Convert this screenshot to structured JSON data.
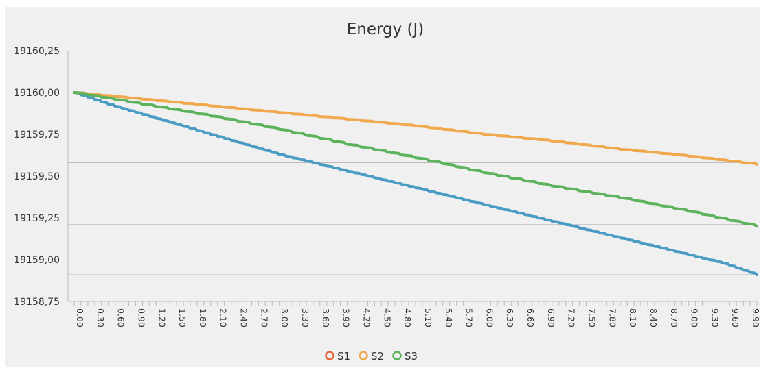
{
  "chart_data": {
    "type": "line",
    "title": "Energy (J)",
    "xlabel": "",
    "ylabel": "",
    "xlim": [
      0,
      10
    ],
    "ylim": [
      19158.75,
      19160.25
    ],
    "y_ticks": [
      "19160,25",
      "19160,00",
      "19159,75",
      "19159,50",
      "19159,25",
      "19159,00",
      "19158,75"
    ],
    "x_ticks": [
      "0.00",
      "0.30",
      "0.60",
      "0.90",
      "1.20",
      "1.50",
      "1.80",
      "2.10",
      "2.40",
      "2.70",
      "3.00",
      "3.30",
      "3.60",
      "3.90",
      "4.20",
      "4.50",
      "4.80",
      "5.10",
      "5.40",
      "5.70",
      "6.00",
      "6.30",
      "6.60",
      "6.90",
      "7.20",
      "7.50",
      "7.80",
      "8.10",
      "8.40",
      "8.70",
      "9.00",
      "9.30",
      "9.60",
      "9.90"
    ],
    "legend_position": "bottom",
    "series": [
      {
        "name": "S1",
        "color": "#4a9cc4",
        "x": [
          0.0,
          0.5,
          1.0,
          1.5,
          2.0,
          2.5,
          3.0,
          3.5,
          4.0,
          4.5,
          5.0,
          5.5,
          6.0,
          6.5,
          7.0,
          7.5,
          8.0,
          8.5,
          9.0,
          9.5,
          10.0
        ],
        "values": [
          19160.0,
          19159.93,
          19159.87,
          19159.81,
          19159.75,
          19159.69,
          19159.63,
          19159.58,
          19159.53,
          19159.48,
          19159.43,
          19159.38,
          19159.33,
          19159.28,
          19159.23,
          19159.18,
          19159.13,
          19159.08,
          19159.03,
          19158.98,
          19158.91
        ]
      },
      {
        "name": "S2",
        "color": "#f0a84c",
        "x": [
          0.0,
          1.0,
          2.0,
          3.0,
          4.0,
          5.0,
          6.0,
          7.0,
          8.0,
          9.0,
          10.0
        ],
        "values": [
          19160.0,
          19159.96,
          19159.92,
          19159.88,
          19159.84,
          19159.8,
          19159.75,
          19159.71,
          19159.66,
          19159.62,
          19159.57
        ]
      },
      {
        "name": "S3",
        "color": "#5cb35c",
        "x": [
          0.0,
          1.0,
          2.0,
          3.0,
          4.0,
          5.0,
          6.0,
          7.0,
          8.0,
          9.0,
          10.0
        ],
        "values": [
          19160.0,
          19159.93,
          19159.86,
          19159.78,
          19159.69,
          19159.61,
          19159.52,
          19159.44,
          19159.37,
          19159.29,
          19159.2
        ]
      }
    ]
  }
}
